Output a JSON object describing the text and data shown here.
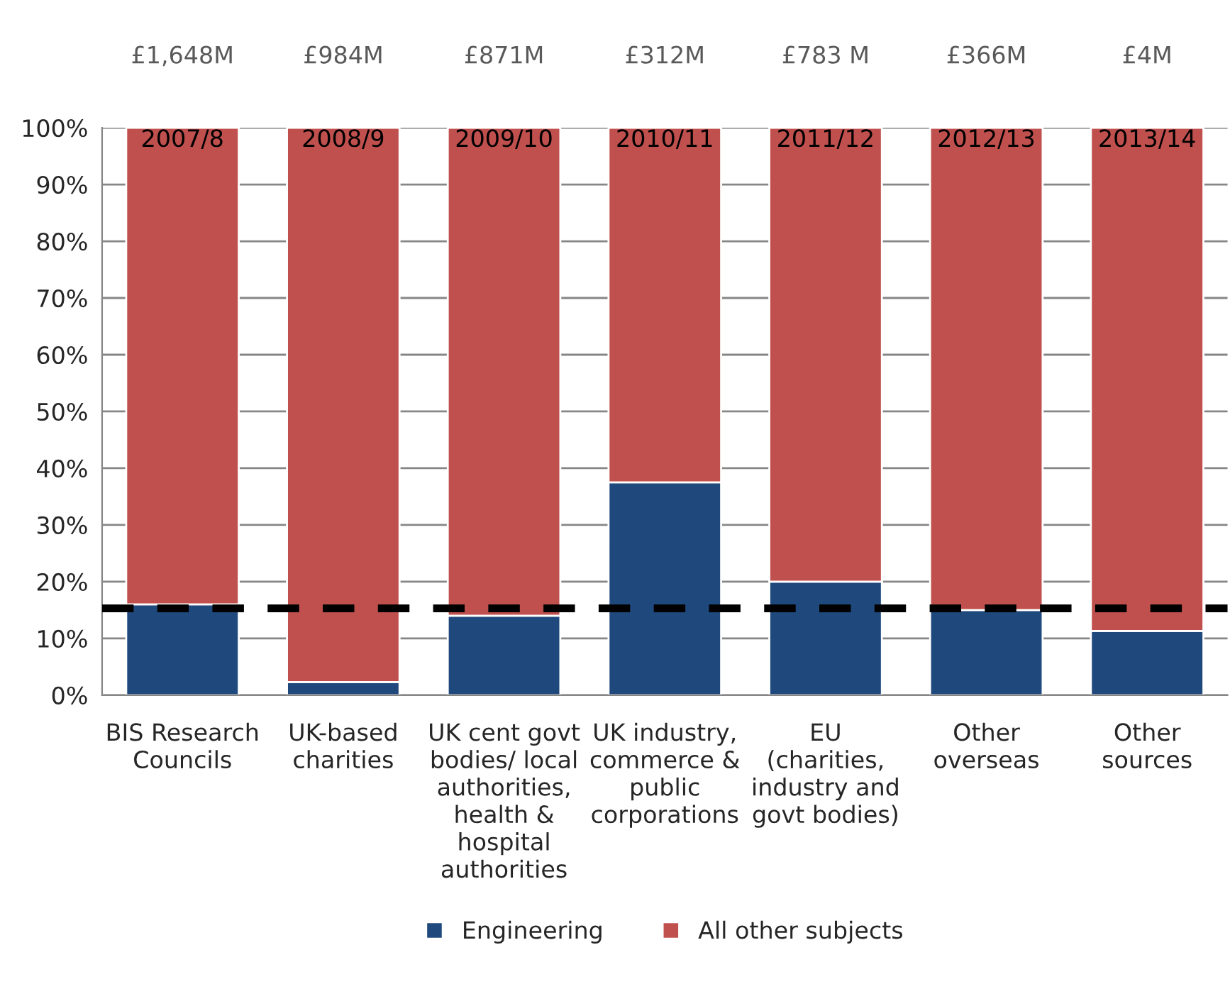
{
  "chart_data": {
    "type": "bar",
    "stacked": true,
    "categories": [
      "BIS Research\nCouncils",
      "UK-based\ncharities",
      "UK cent govt\nbodies/ local\nauthorities,\nhealth &\nhospital\nauthorities",
      "UK industry,\ncommerce &\npublic\ncorporations",
      "EU\n(charities,\nindustry and\ngovt bodies)",
      "Other\noverseas",
      "Other\nsources"
    ],
    "series": [
      {
        "name": "Engineering",
        "color": "#1f497d",
        "values": [
          16,
          2.3,
          14,
          37.5,
          20,
          15,
          11.3
        ]
      },
      {
        "name": "All other subjects",
        "color": "#c0504d",
        "values": [
          84,
          97.7,
          86,
          62.5,
          80,
          85,
          88.7
        ]
      }
    ],
    "ylim": [
      0,
      100
    ],
    "yticks": [
      {
        "value": 0,
        "label": "0%"
      },
      {
        "value": 10,
        "label": "10%"
      },
      {
        "value": 20,
        "label": "20%"
      },
      {
        "value": 30,
        "label": "30%"
      },
      {
        "value": 40,
        "label": "40%"
      },
      {
        "value": 50,
        "label": "50%"
      },
      {
        "value": 60,
        "label": "60%"
      },
      {
        "value": 70,
        "label": "70%"
      },
      {
        "value": 80,
        "label": "80%"
      },
      {
        "value": 90,
        "label": "90%"
      },
      {
        "value": 100,
        "label": "100%"
      }
    ],
    "grid": "y",
    "legend": "bottom",
    "ref_lines": [
      {
        "axis": "y",
        "value": 15.3,
        "color": "#000000",
        "line_style": "dashed"
      }
    ],
    "annotations": [
      "£1,648M",
      "£984M",
      "£871M",
      "£312M",
      "£783 M",
      "£366M",
      "£4M",
      "2007/8",
      "2008/9",
      "2009/10",
      "2010/11",
      "2011/12",
      "2012/13",
      "2013/14"
    ]
  }
}
